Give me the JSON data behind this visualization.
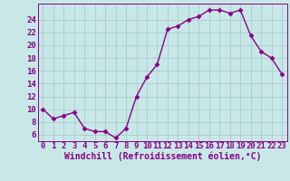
{
  "x": [
    0,
    1,
    2,
    3,
    4,
    5,
    6,
    7,
    8,
    9,
    10,
    11,
    12,
    13,
    14,
    15,
    16,
    17,
    18,
    19,
    20,
    21,
    22,
    23
  ],
  "y": [
    10,
    8.5,
    9,
    9.5,
    7,
    6.5,
    6.5,
    5.5,
    7,
    12,
    15,
    17,
    22.5,
    23,
    24,
    24.5,
    25.5,
    25.5,
    25,
    25.5,
    21.5,
    19,
    18,
    15.5
  ],
  "line_color": "#880088",
  "marker": "D",
  "marker_size": 2.5,
  "line_width": 1.0,
  "bg_color": "#c8e8e8",
  "grid_color": "#aacccc",
  "xlabel": "Windchill (Refroidissement éolien,°C)",
  "xlabel_fontsize": 7,
  "xtick_labels": [
    "0",
    "1",
    "2",
    "3",
    "4",
    "5",
    "6",
    "7",
    "8",
    "9",
    "10",
    "11",
    "12",
    "13",
    "14",
    "15",
    "16",
    "17",
    "18",
    "19",
    "20",
    "21",
    "22",
    "23"
  ],
  "ytick_values": [
    6,
    8,
    10,
    12,
    14,
    16,
    18,
    20,
    22,
    24
  ],
  "ylim": [
    5.0,
    26.5
  ],
  "xlim": [
    -0.5,
    23.5
  ],
  "tick_fontsize": 6.5
}
